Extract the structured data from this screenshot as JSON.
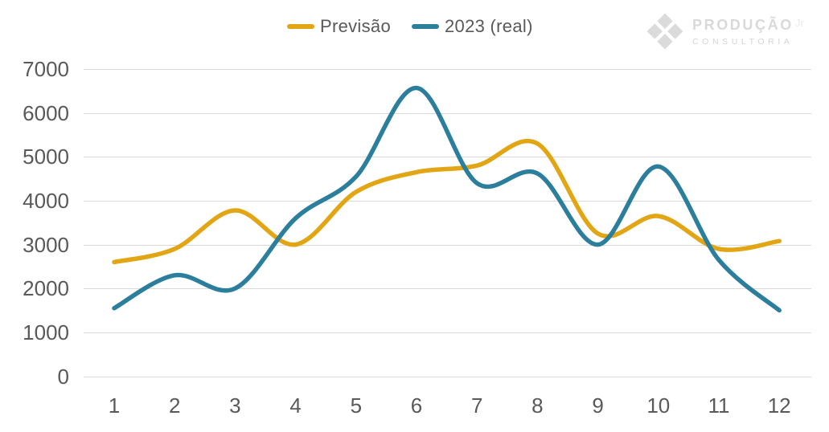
{
  "legend": [
    {
      "label": "Previsão",
      "color": "#E2A614"
    },
    {
      "label": "2023 (real)",
      "color": "#2C7E9D"
    }
  ],
  "logo": {
    "name": "Produção",
    "suffix": "Jr",
    "subtitle": "consultoria"
  },
  "colors": {
    "grid": "#DADADA",
    "axis_text": "#595959",
    "previsao_line": "#E2A614",
    "real_line": "#2C7E9D",
    "logo_gray": "#DBDBDB"
  },
  "chart_data": {
    "type": "line",
    "title": "",
    "xlabel": "",
    "ylabel": "",
    "categories": [
      1,
      2,
      3,
      4,
      5,
      6,
      7,
      8,
      9,
      10,
      11,
      12
    ],
    "series": [
      {
        "name": "Previsão",
        "color": "#E2A614",
        "values": [
          2600,
          2900,
          3780,
          3000,
          4200,
          4650,
          4800,
          5300,
          3250,
          3650,
          2900,
          3080
        ]
      },
      {
        "name": "2023 (real)",
        "color": "#2C7E9D",
        "values": [
          1550,
          2300,
          2000,
          3600,
          4550,
          6570,
          4400,
          4620,
          3000,
          4780,
          2650,
          1500
        ]
      }
    ],
    "ylim": [
      0,
      7000
    ],
    "y_ticks": [
      0,
      1000,
      2000,
      3000,
      4000,
      5000,
      6000,
      7000
    ],
    "grid": "horizontal",
    "line_style": "smooth",
    "legend_position": "top-center"
  }
}
